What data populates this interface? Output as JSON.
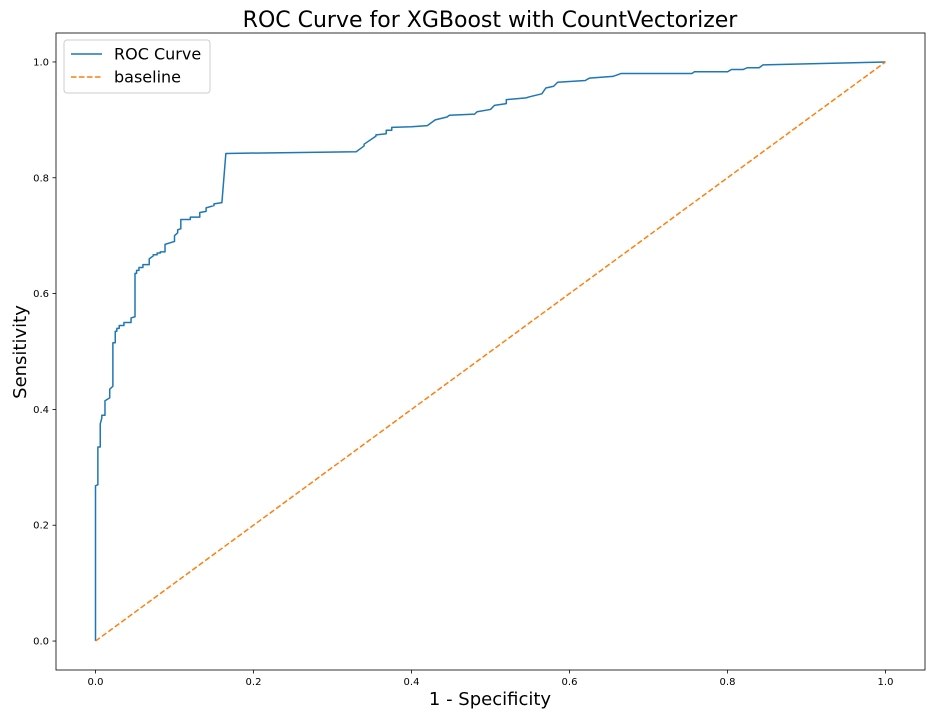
{
  "chart_data": {
    "type": "line",
    "title": "ROC Curve for XGBoost with CountVectorizer",
    "xlabel": "1 - Specificity",
    "ylabel": "Sensitivity",
    "xlim": [
      -0.05,
      1.05
    ],
    "ylim": [
      -0.05,
      1.05
    ],
    "xticks": [
      "0.0",
      "0.2",
      "0.4",
      "0.6",
      "0.8",
      "1.0"
    ],
    "yticks": [
      "0.0",
      "0.2",
      "0.4",
      "0.6",
      "0.8",
      "1.0"
    ],
    "grid": false,
    "legend_position": "upper-left",
    "series": [
      {
        "name": "ROC Curve",
        "color": "#1f77b4",
        "style": "solid",
        "x": [
          0.0,
          0.0,
          0.003,
          0.003,
          0.006,
          0.006,
          0.008,
          0.008,
          0.012,
          0.012,
          0.018,
          0.018,
          0.022,
          0.022,
          0.025,
          0.025,
          0.027,
          0.027,
          0.03,
          0.03,
          0.036,
          0.036,
          0.045,
          0.045,
          0.05,
          0.05,
          0.052,
          0.052,
          0.055,
          0.055,
          0.06,
          0.06,
          0.068,
          0.068,
          0.073,
          0.073,
          0.078,
          0.078,
          0.082,
          0.082,
          0.088,
          0.088,
          0.1,
          0.1,
          0.104,
          0.104,
          0.108,
          0.108,
          0.12,
          0.12,
          0.132,
          0.132,
          0.14,
          0.14,
          0.15,
          0.15,
          0.16,
          0.165,
          0.33,
          0.335,
          0.34,
          0.34,
          0.355,
          0.355,
          0.368,
          0.368,
          0.375,
          0.375,
          0.4,
          0.42,
          0.425,
          0.43,
          0.445,
          0.448,
          0.48,
          0.483,
          0.5,
          0.505,
          0.52,
          0.52,
          0.545,
          0.55,
          0.565,
          0.57,
          0.58,
          0.585,
          0.62,
          0.625,
          0.655,
          0.665,
          0.755,
          0.758,
          0.8,
          0.805,
          0.82,
          0.825,
          0.84,
          0.845,
          1.0
        ],
        "y": [
          0.0,
          0.268,
          0.27,
          0.335,
          0.335,
          0.375,
          0.385,
          0.39,
          0.39,
          0.415,
          0.42,
          0.435,
          0.44,
          0.515,
          0.515,
          0.535,
          0.535,
          0.54,
          0.54,
          0.545,
          0.545,
          0.55,
          0.55,
          0.558,
          0.56,
          0.635,
          0.635,
          0.64,
          0.64,
          0.645,
          0.645,
          0.65,
          0.65,
          0.66,
          0.665,
          0.667,
          0.667,
          0.67,
          0.67,
          0.672,
          0.672,
          0.685,
          0.69,
          0.7,
          0.705,
          0.71,
          0.712,
          0.728,
          0.728,
          0.732,
          0.732,
          0.74,
          0.742,
          0.748,
          0.752,
          0.755,
          0.757,
          0.842,
          0.845,
          0.85,
          0.855,
          0.858,
          0.872,
          0.874,
          0.876,
          0.882,
          0.882,
          0.887,
          0.888,
          0.89,
          0.895,
          0.9,
          0.905,
          0.908,
          0.91,
          0.914,
          0.918,
          0.925,
          0.928,
          0.935,
          0.938,
          0.94,
          0.945,
          0.955,
          0.958,
          0.965,
          0.968,
          0.972,
          0.975,
          0.98,
          0.98,
          0.983,
          0.983,
          0.987,
          0.987,
          0.99,
          0.99,
          0.995,
          1.0
        ]
      },
      {
        "name": "baseline",
        "color": "#ff7f0e",
        "style": "dashed",
        "x": [
          0.0,
          1.0
        ],
        "y": [
          0.0,
          1.0
        ]
      }
    ]
  }
}
